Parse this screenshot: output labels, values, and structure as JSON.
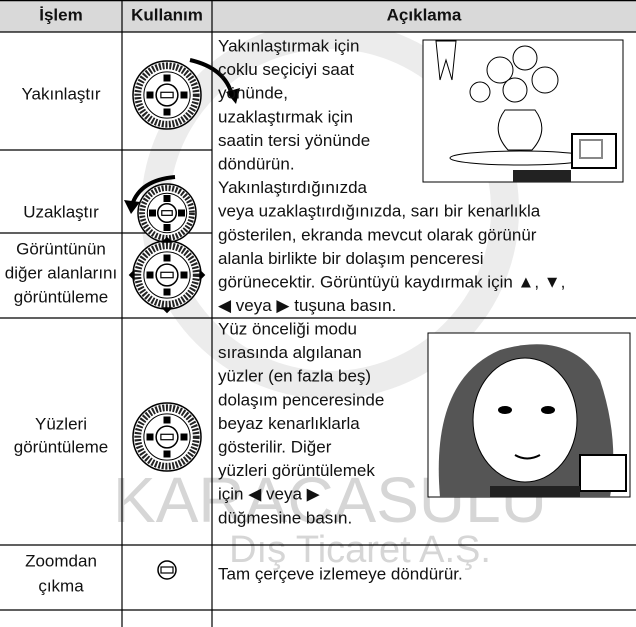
{
  "table": {
    "header": [
      "İşlem",
      "Kullanım",
      "Açıklama"
    ],
    "rows": [
      [
        "Yakınlaştır"
      ],
      [
        "Uzaklaştır"
      ],
      [
        "Görüntünün",
        "diğer alanlarını",
        "görüntüleme"
      ],
      [
        "Yüzleri",
        "görüntüleme"
      ],
      [
        "Zoomdan",
        "çıkma"
      ]
    ],
    "descriptions": [
      [
        "Yakınlaştırmak için",
        "çoklu seçiciyi saat",
        "yönünde,",
        "uzaklaştırmak için",
        "saatin tersi yönünde",
        "döndürün.",
        "Yakınlaştırdığınızda",
        "veya uzaklaştırdığınızda, sarı bir kenarlıkla",
        "gösterilen, ekranda mevcut olarak görünür",
        "alanla birlikte bir dolaşım penceresi",
        "görünecektir. Görüntüyü kaydırmak için ▲, ▼,",
        "◀ veya ▶ tuşuna basın."
      ],
      [
        "Yüz önceliği modu",
        "sırasında algılanan",
        "yüzler (en fazla beş)",
        "dolaşım penceresinde",
        "beyaz kenarlıklarla",
        "gösterilir. Diğer",
        "yüzleri görüntülemek",
        "için ◀ veya ▶",
        "düğmesine basın."
      ],
      [
        "Tam çerçeve izlemeye döndürür."
      ]
    ]
  },
  "watermark": [
    "KARACASULU",
    "Dış Ticaret A.Ş."
  ]
}
